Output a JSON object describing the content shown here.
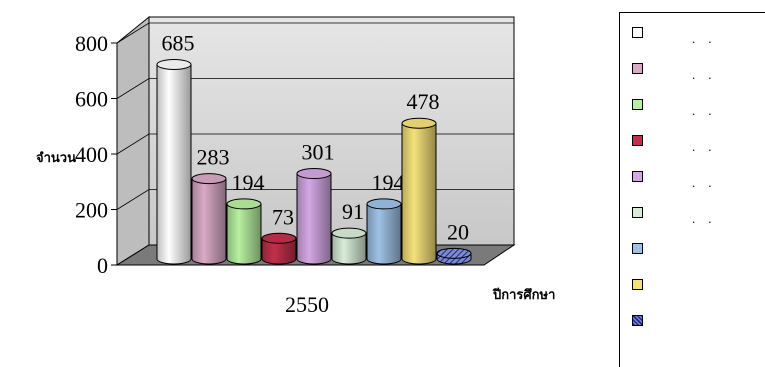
{
  "chart_data": {
    "type": "bar",
    "title": "",
    "ylabel": "จำนวน",
    "xlabel": "ปีการศึกษา",
    "categories": [
      "2550"
    ],
    "ylim": [
      0,
      800
    ],
    "yticks": [
      "0",
      "200",
      "400",
      "600",
      "800"
    ],
    "grid": true,
    "legend_position": "right",
    "series": [
      {
        "values": [
          685
        ],
        "color": "#ffffff"
      },
      {
        "values": [
          283
        ],
        "color": "#d9a9c6"
      },
      {
        "values": [
          194
        ],
        "color": "#b7f0a0"
      },
      {
        "values": [
          73
        ],
        "color": "#c0304a"
      },
      {
        "values": [
          301
        ],
        "color": "#d4a8e4"
      },
      {
        "values": [
          91
        ],
        "color": "#d8ecd8"
      },
      {
        "values": [
          194
        ],
        "color": "#9ec2e6"
      },
      {
        "values": [
          478
        ],
        "color": "#f5e17a"
      },
      {
        "values": [
          20
        ],
        "color": "#4a5aa8"
      }
    ]
  },
  "legend": {
    "entries": [
      {
        "dots": ".    ."
      },
      {
        "dots": ".    ."
      },
      {
        "dots": ".    ."
      },
      {
        "dots": ".    ."
      },
      {
        "dots": ".    ."
      },
      {
        "dots": ".    ."
      },
      {
        "dots": ""
      },
      {
        "dots": ""
      },
      {
        "dots": ""
      }
    ]
  }
}
